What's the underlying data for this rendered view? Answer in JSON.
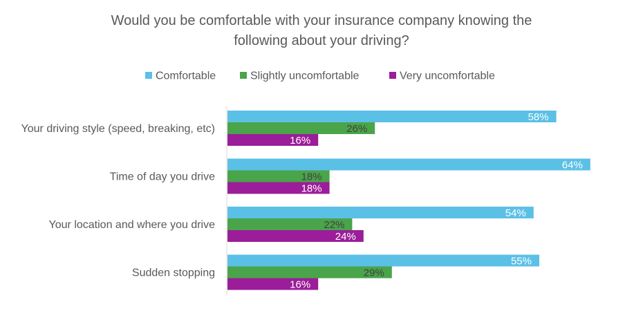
{
  "chart_data": {
    "type": "bar",
    "orientation": "horizontal",
    "title": "Would you be comfortable with your insurance company knowing the following about your driving?",
    "title_lines": [
      "Would you be comfortable with your insurance company knowing the",
      "following about your driving?"
    ],
    "legend_position": "top",
    "categories": [
      "Your driving style (speed, breaking, etc)",
      "Time of day you drive",
      "Your location and where you drive",
      "Sudden stopping"
    ],
    "series": [
      {
        "name": "Comfortable",
        "color": "#5bc0e6",
        "values": [
          58,
          64,
          54,
          55
        ],
        "labels": [
          "58%",
          "64%",
          "54%",
          "55%"
        ]
      },
      {
        "name": "Slightly uncomfortable",
        "color": "#4aa44a",
        "values": [
          26,
          18,
          22,
          29
        ],
        "labels": [
          "26%",
          "18%",
          "22%",
          "29%"
        ]
      },
      {
        "name": "Very uncomfortable",
        "color": "#9b1d99",
        "values": [
          16,
          18,
          24,
          16
        ],
        "labels": [
          "16%",
          "18%",
          "24%",
          "16%"
        ]
      }
    ],
    "value_unit": "%",
    "xlim": [
      0,
      65
    ],
    "grid": false
  }
}
